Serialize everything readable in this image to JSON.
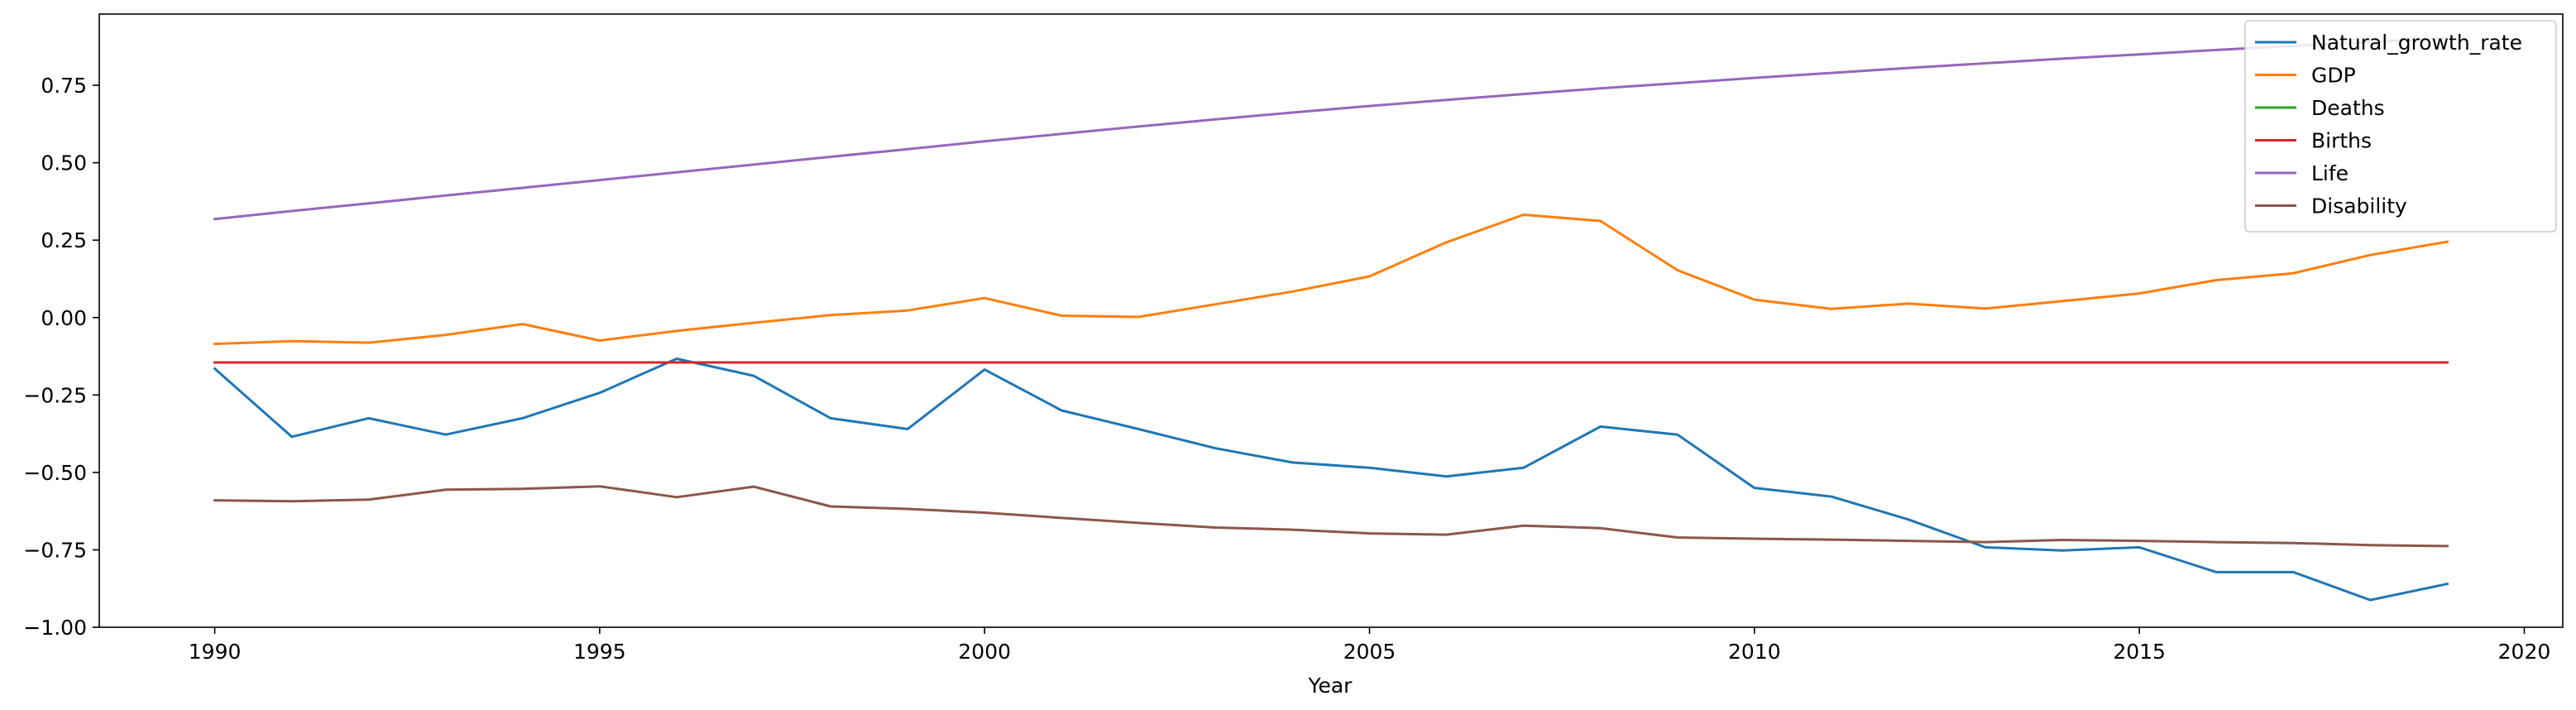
{
  "chart_data": {
    "type": "line",
    "title": "",
    "xlabel": "Year",
    "ylabel": "",
    "xlim": [
      1988.5,
      2020.5
    ],
    "ylim": [
      -1.0,
      0.98
    ],
    "xticks": [
      1990,
      1995,
      2000,
      2005,
      2010,
      2015,
      2020
    ],
    "yticks": [
      -1.0,
      -0.75,
      -0.5,
      -0.25,
      0.0,
      0.25,
      0.5,
      0.75
    ],
    "xtick_labels": [
      "1990",
      "1995",
      "2000",
      "2005",
      "2010",
      "2015",
      "2020"
    ],
    "ytick_labels": [
      "−1.00",
      "−0.75",
      "−0.50",
      "−0.25",
      "0.00",
      "0.25",
      "0.50",
      "0.75"
    ],
    "grid": false,
    "legend_position": "top-right",
    "x": [
      1990,
      1991,
      1992,
      1993,
      1994,
      1995,
      1996,
      1997,
      1998,
      1999,
      2000,
      2001,
      2002,
      2003,
      2004,
      2005,
      2006,
      2007,
      2008,
      2009,
      2010,
      2011,
      2012,
      2013,
      2014,
      2015,
      2016,
      2017,
      2018,
      2019
    ],
    "series": [
      {
        "name": "Natural_growth_rate",
        "color": "#1f77b4",
        "values": [
          -0.165,
          -0.385,
          -0.325,
          -0.378,
          -0.325,
          -0.243,
          -0.133,
          -0.188,
          -0.325,
          -0.36,
          -0.168,
          -0.3,
          -0.36,
          -0.422,
          -0.468,
          -0.485,
          -0.513,
          -0.485,
          -0.352,
          -0.378,
          -0.55,
          -0.578,
          -0.652,
          -0.742,
          -0.752,
          -0.742,
          -0.822,
          -0.822,
          -0.912,
          -0.86
        ]
      },
      {
        "name": "GDP",
        "color": "#ff7f0e",
        "values": [
          -0.085,
          -0.076,
          -0.081,
          -0.056,
          -0.021,
          -0.074,
          -0.043,
          -0.017,
          0.008,
          0.023,
          0.063,
          0.006,
          0.002,
          0.043,
          0.084,
          0.133,
          0.243,
          0.332,
          0.312,
          0.153,
          0.058,
          0.028,
          0.045,
          0.029,
          0.053,
          0.078,
          0.121,
          0.143,
          0.202,
          0.245
        ]
      },
      {
        "name": "Deaths",
        "color": "#2ca02c",
        "values": [
          -0.145,
          -0.145,
          -0.145,
          -0.145,
          -0.145,
          -0.145,
          -0.145,
          -0.145,
          -0.145,
          -0.145,
          -0.145,
          -0.145,
          -0.145,
          -0.145,
          -0.145,
          -0.145,
          -0.145,
          -0.145,
          -0.145,
          -0.145,
          -0.145,
          -0.145,
          -0.145,
          -0.145,
          -0.145,
          -0.145,
          -0.145,
          -0.145,
          -0.145,
          -0.145
        ]
      },
      {
        "name": "Births",
        "color": "#d62728",
        "values": [
          -0.145,
          -0.145,
          -0.145,
          -0.145,
          -0.145,
          -0.145,
          -0.145,
          -0.145,
          -0.145,
          -0.145,
          -0.145,
          -0.145,
          -0.145,
          -0.145,
          -0.145,
          -0.145,
          -0.145,
          -0.145,
          -0.145,
          -0.145,
          -0.145,
          -0.145,
          -0.145,
          -0.145,
          -0.145,
          -0.145,
          -0.145,
          -0.145,
          -0.145,
          -0.145
        ]
      },
      {
        "name": "Life",
        "color": "#9467bd",
        "values": [
          0.318,
          0.344,
          0.369,
          0.394,
          0.419,
          0.444,
          0.469,
          0.494,
          0.519,
          0.544,
          0.569,
          0.593,
          0.617,
          0.64,
          0.662,
          0.683,
          0.703,
          0.722,
          0.74,
          0.757,
          0.774,
          0.79,
          0.806,
          0.821,
          0.836,
          0.85,
          0.864,
          0.877,
          0.89,
          0.902
        ]
      },
      {
        "name": "Disability",
        "color": "#8c564b",
        "values": [
          -0.59,
          -0.593,
          -0.588,
          -0.556,
          -0.553,
          -0.545,
          -0.58,
          -0.546,
          -0.61,
          -0.618,
          -0.63,
          -0.647,
          -0.663,
          -0.678,
          -0.685,
          -0.697,
          -0.701,
          -0.672,
          -0.68,
          -0.71,
          -0.714,
          -0.717,
          -0.721,
          -0.725,
          -0.718,
          -0.721,
          -0.725,
          -0.728,
          -0.735,
          -0.738
        ]
      }
    ]
  }
}
